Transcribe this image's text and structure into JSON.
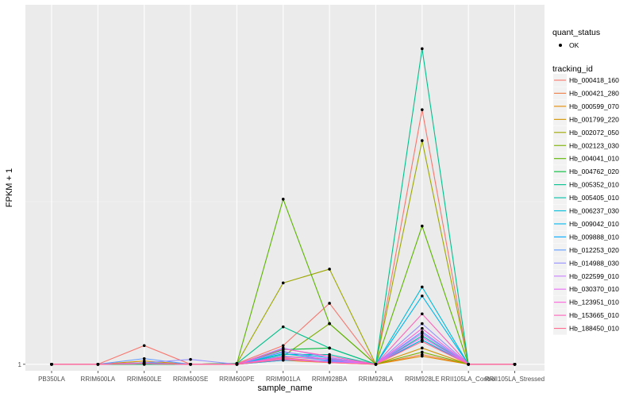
{
  "chart_data": {
    "type": "line",
    "xlabel": "sample_name",
    "ylabel": "FPKM + 1",
    "categories": [
      "PB350LA",
      "RRIM600LA",
      "RRIM600LE",
      "RRIM600SE",
      "RRIM600PE",
      "RRIM901LA",
      "RRIM928BA",
      "RRIM928LA",
      "RRIM928LE",
      "RRII105LA_Control",
      "RRII105LA_Stressed"
    ],
    "y_tick_labels": [
      "1"
    ],
    "y_ticks": [
      1
    ],
    "ylim": [
      0.92,
      5.42
    ],
    "grid": true,
    "legend_position": "right",
    "legend_quant": {
      "title": "quant_status",
      "entries": [
        "OK"
      ]
    },
    "legend_tracking": {
      "title": "tracking_id"
    },
    "series": [
      {
        "name": "Hb_000418_160",
        "color": "#F8766D",
        "values": [
          1,
          1,
          1.23,
          1,
          1.01,
          1.23,
          1.75,
          1,
          4.13,
          1,
          1
        ]
      },
      {
        "name": "Hb_000421_280",
        "color": "#EF7F48",
        "values": [
          1,
          1,
          1.02,
          1,
          1,
          1.08,
          1.03,
          1,
          1.12,
          1,
          1
        ]
      },
      {
        "name": "Hb_000599_070",
        "color": "#E38900",
        "values": [
          1,
          1,
          1.01,
          1,
          1,
          1.05,
          1.02,
          1,
          1.1,
          1,
          1
        ]
      },
      {
        "name": "Hb_001799_220",
        "color": "#D39200",
        "values": [
          1,
          1,
          1.04,
          1,
          1,
          1.1,
          1.06,
          1,
          1.2,
          1,
          1
        ]
      },
      {
        "name": "Hb_002072_050",
        "color": "#9DA700",
        "values": [
          1,
          1,
          1,
          1,
          1.01,
          2,
          2.17,
          1,
          3.75,
          1,
          1
        ]
      },
      {
        "name": "Hb_002123_030",
        "color": "#7CAE00",
        "values": [
          1,
          1,
          1.01,
          1,
          1,
          1.1,
          1.5,
          1,
          1.15,
          1,
          1
        ]
      },
      {
        "name": "Hb_004041_010",
        "color": "#5BB300",
        "values": [
          1,
          1,
          1,
          1,
          1.01,
          3.03,
          1.5,
          1,
          2.7,
          1,
          1
        ]
      },
      {
        "name": "Hb_004762_020",
        "color": "#00BA38",
        "values": [
          1,
          1,
          1.01,
          1,
          1,
          1.18,
          1.2,
          1,
          1.3,
          1,
          1
        ]
      },
      {
        "name": "Hb_005352_010",
        "color": "#00C08B",
        "values": [
          1,
          1,
          1,
          1,
          1.01,
          1.46,
          1.2,
          1,
          4.88,
          1,
          1
        ]
      },
      {
        "name": "Hb_005405_010",
        "color": "#00BFA7",
        "values": [
          1,
          1,
          1.01,
          1,
          1,
          1.12,
          1.12,
          1,
          1.35,
          1,
          1
        ]
      },
      {
        "name": "Hb_006237_030",
        "color": "#00BCD8",
        "values": [
          1,
          1,
          1.01,
          1,
          1,
          1.15,
          1.08,
          1,
          1.95,
          1,
          1
        ]
      },
      {
        "name": "Hb_009042_010",
        "color": "#00B5EE",
        "values": [
          1,
          1,
          1.01,
          1,
          1,
          1.13,
          1.06,
          1,
          1.84,
          1,
          1
        ]
      },
      {
        "name": "Hb_009888_010",
        "color": "#00A9FF",
        "values": [
          1,
          1,
          1.02,
          1,
          1,
          1.05,
          1.04,
          1,
          1.3,
          1,
          1
        ]
      },
      {
        "name": "Hb_012253_020",
        "color": "#619CFF",
        "values": [
          1,
          1,
          1.07,
          1,
          1,
          1.1,
          1.05,
          1,
          1.4,
          1,
          1
        ]
      },
      {
        "name": "Hb_014988_030",
        "color": "#9590FF",
        "values": [
          1,
          1,
          1.02,
          1.06,
          1,
          1.2,
          1.08,
          1,
          1.5,
          1,
          1
        ]
      },
      {
        "name": "Hb_022599_010",
        "color": "#C77CFF",
        "values": [
          1,
          1,
          1.01,
          1,
          1,
          1.16,
          1.05,
          1,
          1.38,
          1,
          1
        ]
      },
      {
        "name": "Hb_030370_010",
        "color": "#E76BF3",
        "values": [
          1,
          1,
          1.01,
          1,
          1,
          1.07,
          1.03,
          1,
          1.33,
          1,
          1
        ]
      },
      {
        "name": "Hb_123951_010",
        "color": "#FA62DB",
        "values": [
          1,
          1,
          1.01,
          1,
          1,
          1.09,
          1.07,
          1,
          1.44,
          1,
          1
        ]
      },
      {
        "name": "Hb_153665_010",
        "color": "#FF62BC",
        "values": [
          1,
          1,
          1.01,
          1,
          1,
          1.19,
          1.1,
          1,
          1.62,
          1,
          1
        ]
      },
      {
        "name": "Hb_188450_010",
        "color": "#FF6C90",
        "values": [
          1,
          1,
          1.01,
          1,
          1,
          1.06,
          1.02,
          1,
          1.28,
          1,
          1
        ]
      }
    ]
  }
}
